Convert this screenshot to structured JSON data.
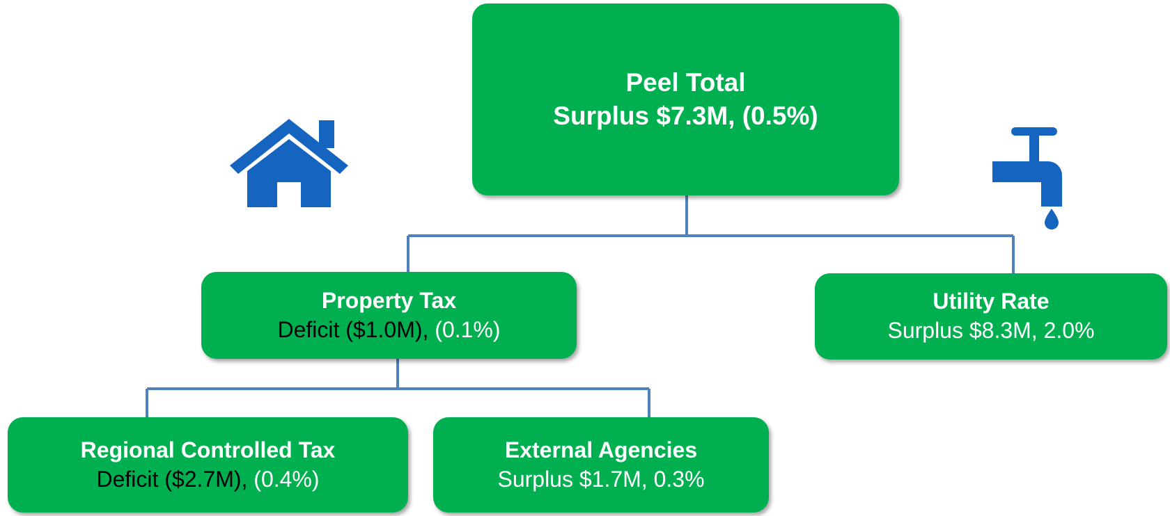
{
  "nodes": [
    {
      "label": "Peel Total",
      "value": [
        "Surplus $7.3M, (0.5%)"
      ]
    },
    {
      "label": "Property Tax",
      "value": [
        "Deficit ($1.0M),",
        "(0.1%)"
      ]
    },
    {
      "label": "Utility Rate",
      "value": [
        "Surplus $8.3M, 2.0%"
      ]
    },
    {
      "label": "Regional Controlled Tax",
      "value": [
        "Deficit ($2.7M),",
        "(0.4%)"
      ]
    },
    {
      "label": "External Agencies",
      "value": [
        "Surplus $1.7M, 0.3%"
      ]
    }
  ]
}
